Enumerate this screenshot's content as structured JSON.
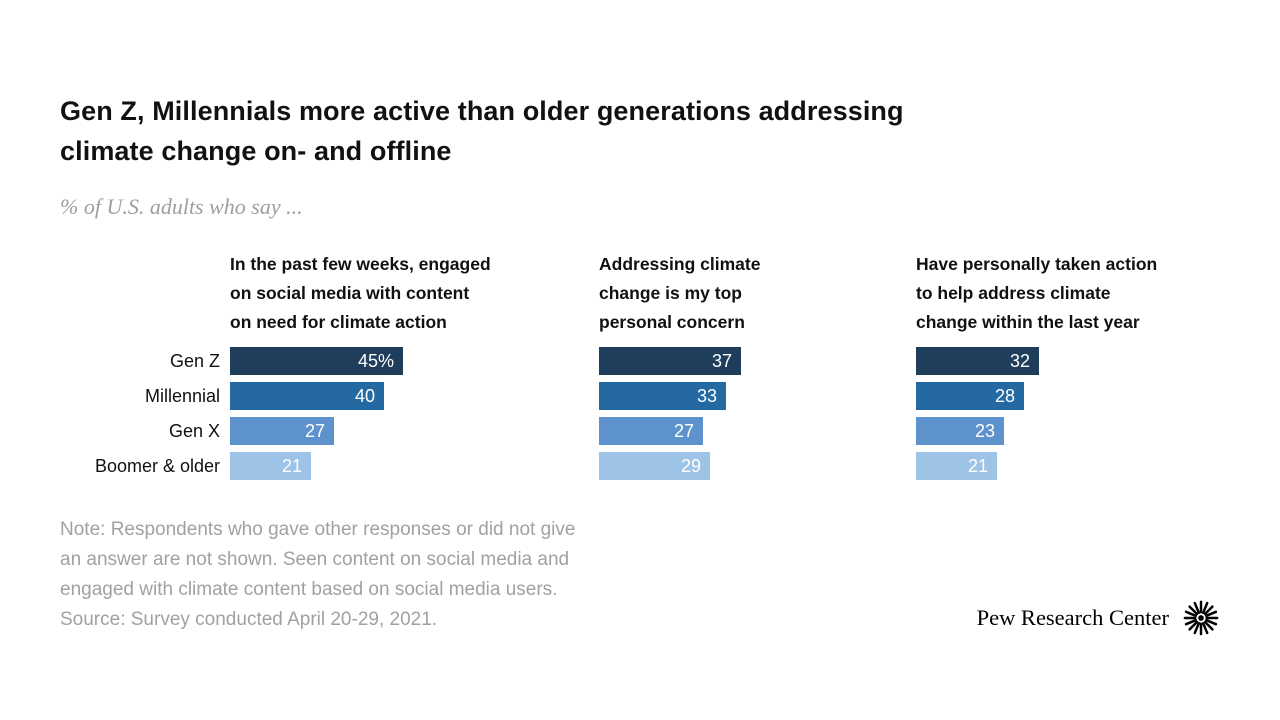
{
  "header": {
    "title_lines": [
      "Gen Z, Millennials more active than older generations addressing",
      "climate change on- and offline"
    ],
    "subtitle": "% of U.S. adults who say ..."
  },
  "chart_data": {
    "type": "bar",
    "orientation": "horizontal",
    "title": "Gen Z, Millennials more active than older generations addressing climate change on- and offline",
    "subtitle": "% of U.S. adults who say ...",
    "categories": [
      "Gen Z",
      "Millennial",
      "Gen X",
      "Boomer & older"
    ],
    "bar_colors": [
      "#1f3e5c",
      "#2569a3",
      "#5e92cc",
      "#9dc3e6"
    ],
    "xlim": [
      0,
      47
    ],
    "grid": false,
    "legend": false,
    "panels": [
      {
        "title": "In the past few weeks, engaged on social media with content on need for climate action",
        "title_lines": [
          "In the past few weeks, engaged",
          "on social media with content",
          "on need for climate action"
        ],
        "values": [
          45,
          40,
          27,
          21
        ],
        "value_labels": [
          "45%",
          "40",
          "27",
          "21"
        ]
      },
      {
        "title": "Addressing climate change is my top personal concern",
        "title_lines": [
          "Addressing climate",
          "change is my top",
          "personal concern"
        ],
        "values": [
          37,
          33,
          27,
          29
        ],
        "value_labels": [
          "37",
          "33",
          "27",
          "29"
        ]
      },
      {
        "title": "Have personally taken action to help address climate change within the last year",
        "title_lines": [
          "Have personally taken action",
          "to help address climate",
          "change within the last year"
        ],
        "values": [
          32,
          28,
          23,
          21
        ],
        "value_labels": [
          "32",
          "28",
          "23",
          "21"
        ]
      }
    ]
  },
  "footer": {
    "note_lines": [
      "Note: Respondents who gave other responses or did not give",
      "an answer are not shown. Seen content on social media and",
      "engaged with climate content based on social media users.",
      "Source: Survey conducted April 20-29, 2021."
    ],
    "brand": "Pew Research Center"
  }
}
